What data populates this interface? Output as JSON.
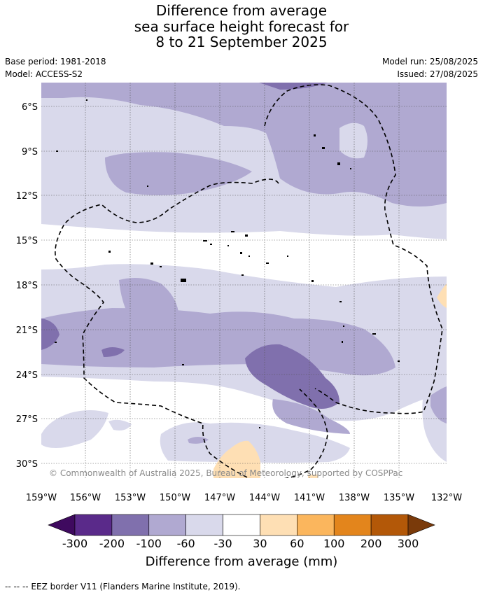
{
  "title": {
    "line1": "Difference from average",
    "line2": "sea surface height forecast for",
    "line3": "8 to 21 September 2025"
  },
  "meta": {
    "base_period": "Base period: 1981-2018",
    "model": "Model: ACCESS-S2",
    "model_run": "Model run: 25/08/2025",
    "issued": "Issued: 27/08/2025"
  },
  "map": {
    "lat_labels": [
      "6°S",
      "9°S",
      "12°S",
      "15°S",
      "18°S",
      "21°S",
      "24°S",
      "27°S",
      "30°S"
    ],
    "lon_labels": [
      "159°W",
      "156°W",
      "153°W",
      "150°W",
      "147°W",
      "144°W",
      "141°W",
      "138°W",
      "135°W",
      "132°W"
    ],
    "copyright": "© Commonwealth of Australia 2025, Bureau of Meteorology, supported by COSPPac"
  },
  "colorbar": {
    "labels": [
      "-300",
      "-200",
      "-100",
      "-60",
      "-30",
      "30",
      "60",
      "100",
      "200",
      "300"
    ],
    "colors": [
      "#3f0a5f",
      "#5a2a8a",
      "#8070ad",
      "#b0a9d1",
      "#d9d9eb",
      "#ffffff",
      "#fedfb4",
      "#fbb65d",
      "#e3851c",
      "#b35808",
      "#7a3a0a"
    ],
    "title": "Difference from average (mm)"
  },
  "footnote": "--  --  -- EEZ border V11 (Flanders Marine Institute, 2019)."
}
